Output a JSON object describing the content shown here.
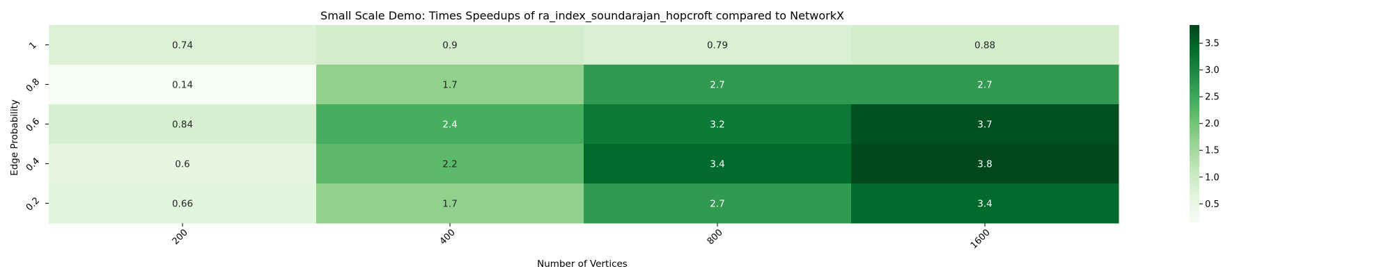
{
  "chart_data": {
    "type": "heatmap",
    "title": "Small Scale Demo: Times Speedups of ra_index_soundarajan_hopcroft compared to NetworkX",
    "xlabel": "Number of Vertices",
    "ylabel": "Edge Probability",
    "x_categories": [
      "200",
      "400",
      "800",
      "1600"
    ],
    "y_categories": [
      "1",
      "0.8",
      "0.6",
      "0.4",
      "0.2"
    ],
    "values": [
      [
        0.74,
        0.9,
        0.79,
        0.88
      ],
      [
        0.14,
        1.7,
        2.7,
        2.7
      ],
      [
        0.84,
        2.4,
        3.2,
        3.7
      ],
      [
        0.6,
        2.2,
        3.4,
        3.8
      ],
      [
        0.66,
        1.7,
        2.7,
        3.4
      ]
    ],
    "value_labels": [
      [
        "0.74",
        "0.9",
        "0.79",
        "0.88"
      ],
      [
        "0.14",
        "1.7",
        "2.7",
        "2.7"
      ],
      [
        "0.84",
        "2.4",
        "3.2",
        "3.7"
      ],
      [
        "0.6",
        "2.2",
        "3.4",
        "3.8"
      ],
      [
        "0.66",
        "1.7",
        "2.7",
        "3.4"
      ]
    ],
    "colormap": "Greens",
    "vmin": 0.14,
    "vmax": 3.84,
    "colorbar_ticks": [
      0.5,
      1.0,
      1.5,
      2.0,
      2.5,
      3.0,
      3.5
    ],
    "colorbar_tick_labels": [
      "0.5",
      "1.0",
      "1.5",
      "2.0",
      "2.5",
      "3.0",
      "3.5"
    ]
  }
}
